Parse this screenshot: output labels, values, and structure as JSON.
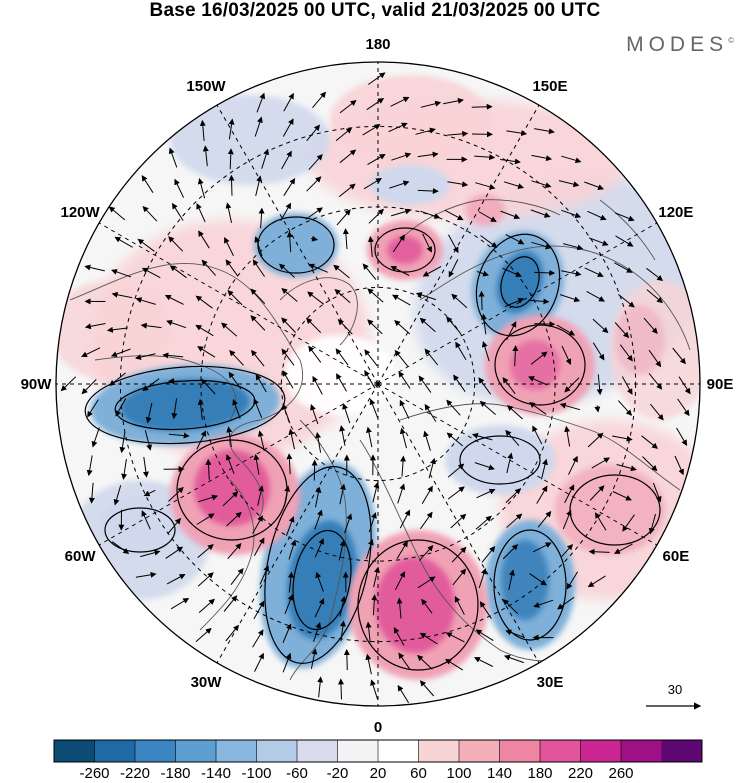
{
  "title": "Base 16/03/2025 00 UTC, valid 21/03/2025 00 UTC",
  "brand": "MODES",
  "brand_mark": "©",
  "longitude_labels": [
    {
      "text": "180",
      "lon": 180
    },
    {
      "text": "150E",
      "lon": 150
    },
    {
      "text": "120E",
      "lon": 120
    },
    {
      "text": "90E",
      "lon": 90
    },
    {
      "text": "60E",
      "lon": 60
    },
    {
      "text": "30E",
      "lon": 30
    },
    {
      "text": "0",
      "lon": 0
    },
    {
      "text": "30W",
      "lon": -30
    },
    {
      "text": "60W",
      "lon": -60
    },
    {
      "text": "90W",
      "lon": -90
    },
    {
      "text": "120W",
      "lon": -120
    },
    {
      "text": "150W",
      "lon": -150
    }
  ],
  "reference_vector": {
    "value": "30"
  },
  "colorbar": {
    "labels": [
      "-260",
      "-220",
      "-180",
      "-140",
      "-100",
      "-60",
      "-20",
      "20",
      "60",
      "100",
      "140",
      "180",
      "220",
      "260"
    ],
    "colors": [
      "#0b4b74",
      "#1f6aa5",
      "#3b86c2",
      "#5d9fd0",
      "#88b8df",
      "#b3cbe7",
      "#dadcee",
      "#f4f4f6",
      "#ffffff",
      "#f9d4d5",
      "#f3b0b8",
      "#ee85a4",
      "#e2559a",
      "#cb2593",
      "#9e1186",
      "#5d0772"
    ]
  },
  "colors": {
    "neg_strong": "#2f79b5",
    "neg_mid": "#7fb0d9",
    "neg_weak": "#cfd8ec",
    "pos_weak": "#f8d3d6",
    "pos_mid": "#f0a2b5",
    "pos_strong": "#df4f97",
    "neutral": "#e6e6e6"
  }
}
